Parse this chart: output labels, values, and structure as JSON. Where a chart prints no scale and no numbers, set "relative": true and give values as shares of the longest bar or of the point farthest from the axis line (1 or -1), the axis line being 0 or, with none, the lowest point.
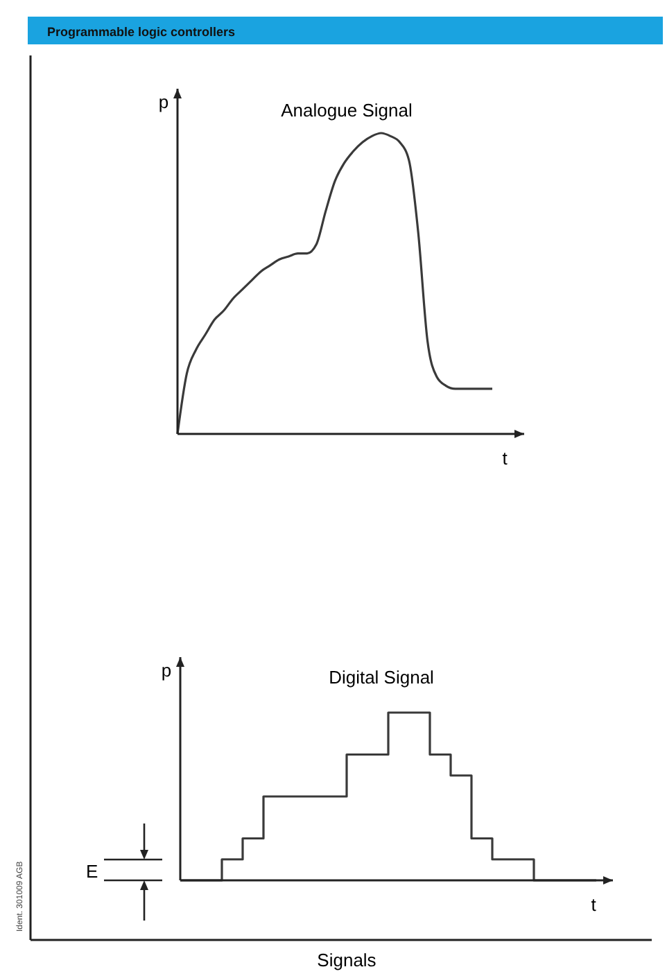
{
  "chart_data": [
    {
      "type": "line",
      "title": "Analogue Signal",
      "xlabel": "t",
      "ylabel": "p",
      "relative": true,
      "annotations": [
        "Programmable logic controllers"
      ],
      "categories": [
        null,
        null,
        null,
        null,
        null,
        null,
        null,
        null,
        null,
        null,
        null,
        null,
        null,
        null,
        null,
        null,
        null,
        null,
        null,
        null,
        null,
        null,
        null,
        null,
        null,
        null,
        null,
        null,
        null,
        null,
        null,
        null,
        null,
        null,
        null
      ],
      "series": [
        {
          "color": "#3a3a3a",
          "values": [
            0,
            0.2,
            0.28,
            0.33,
            0.38,
            0.41,
            0.45,
            0.48,
            0.51,
            0.54,
            0.56,
            0.58,
            0.59,
            0.6,
            0.6,
            0.63,
            0.74,
            0.84,
            0.9,
            0.94,
            0.97,
            0.99,
            1,
            0.99,
            0.97,
            0.91,
            0.67,
            0.31,
            0.19,
            0.16,
            0.15,
            0.15,
            0.15,
            0.15,
            0.15
          ]
        }
      ]
    },
    {
      "type": "step",
      "title": "Digital Signal",
      "xlabel": "t",
      "ylabel": "p",
      "relative": true,
      "annotations": [
        "E",
        "Signals",
        "Ident. 301009 AGB"
      ],
      "categories": [
        null,
        null,
        null,
        null,
        null,
        null,
        null,
        null,
        null,
        null,
        null,
        null,
        null,
        null,
        null,
        null,
        null,
        null,
        null,
        null,
        null
      ],
      "series": [
        {
          "color": "#3a3a3a",
          "values": [
            0,
            0,
            0.125,
            0.25,
            0.5,
            0.5,
            0.5,
            0.5,
            0.75,
            0.75,
            1,
            1,
            0.75,
            0.625,
            0.25,
            0.125,
            0.125,
            0,
            0,
            0,
            0
          ]
        }
      ]
    }
  ]
}
